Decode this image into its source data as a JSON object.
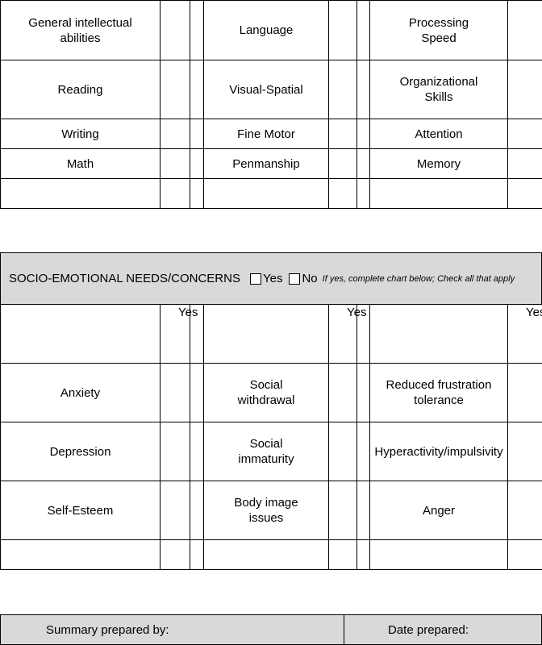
{
  "academic": {
    "rows": [
      [
        "General intellectual abilities",
        "Language",
        "Processing Speed"
      ],
      [
        "Reading",
        "Visual-Spatial",
        "Organizational Skills"
      ],
      [
        "Writing",
        "Fine Motor",
        "Attention"
      ],
      [
        "Math",
        "Penmanship",
        "Memory"
      ]
    ]
  },
  "socio": {
    "title": "SOCIO-EMOTIONAL NEEDS/CONCERNS",
    "yes": "Yes",
    "no": "No",
    "note": "If yes, complete chart below; Check all that apply",
    "column_headers": [
      "Yes",
      "Yes",
      "Yes"
    ],
    "rows": [
      [
        "Anxiety",
        "Social withdrawal",
        "Reduced frustration tolerance"
      ],
      [
        "Depression",
        "Social immaturity",
        "Hyperactivity/impulsivity"
      ],
      [
        "Self-Esteem",
        "Body image issues",
        "Anger"
      ]
    ]
  },
  "summary": {
    "prepared_by": "Summary prepared by:",
    "date": "Date prepared:"
  }
}
